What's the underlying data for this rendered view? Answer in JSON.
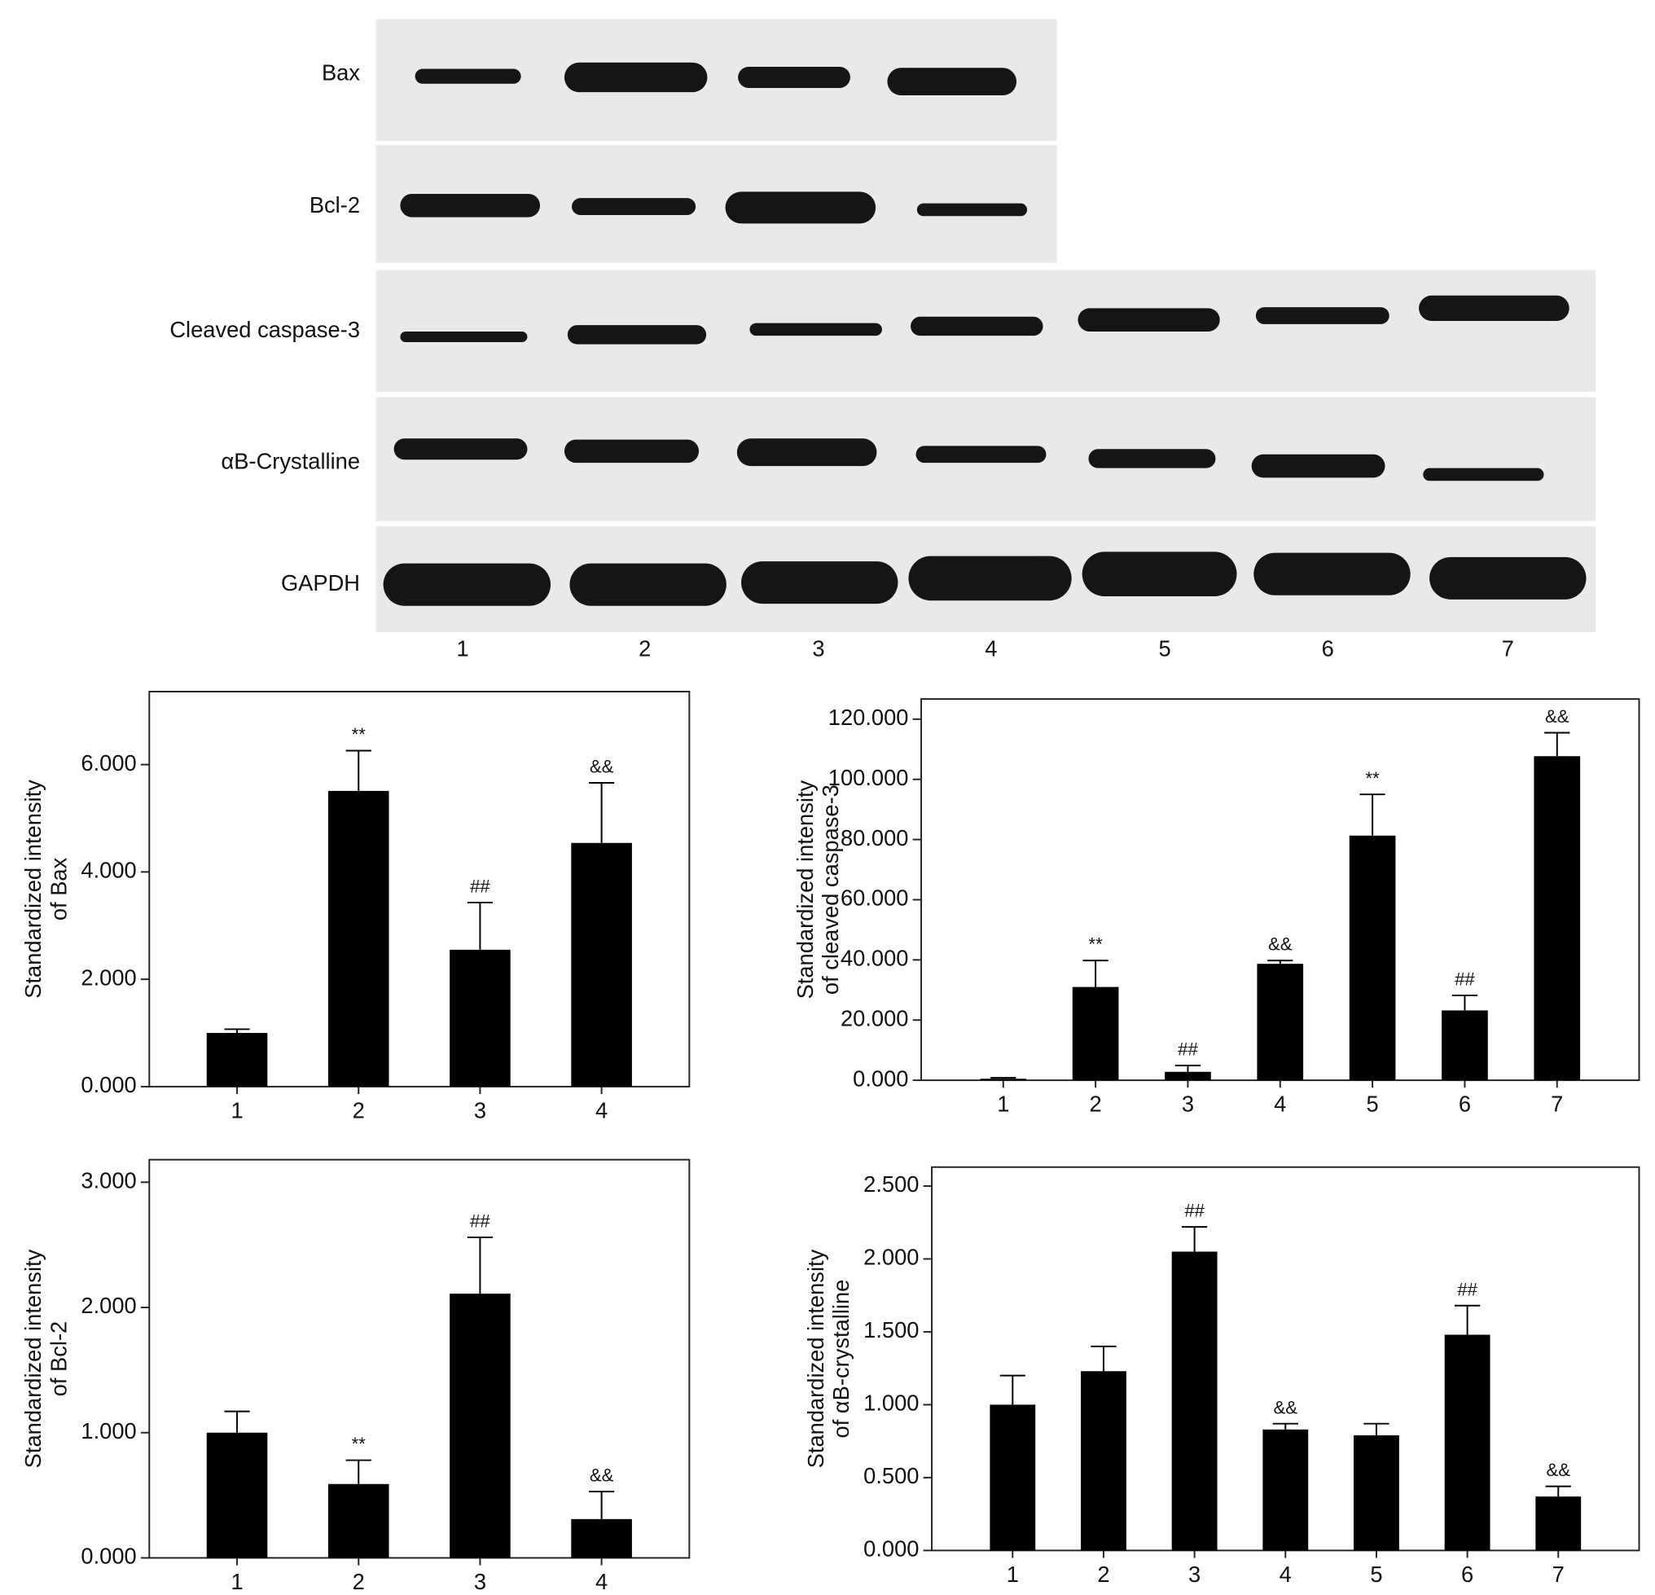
{
  "blot": {
    "rows": [
      "Bax",
      "Bcl-2",
      "Cleaved caspase-3",
      "αB-Crystalline",
      "GAPDH"
    ],
    "lanes": [
      "1",
      "2",
      "3",
      "4",
      "5",
      "6",
      "7"
    ]
  },
  "chart_data": [
    {
      "type": "bar",
      "y_label": [
        "Standardized intensity",
        "of Bax"
      ],
      "color": "#000000",
      "categories": [
        "1",
        "2",
        "3",
        "4"
      ],
      "values": [
        1.0,
        5.51,
        2.55,
        4.54
      ],
      "errors": [
        0.07,
        0.75,
        0.88,
        1.12
      ],
      "annotations": [
        null,
        "**",
        "##",
        "&&"
      ],
      "ylim": [
        0,
        7.36
      ],
      "yticks": [
        {
          "value": 0,
          "label": "0.000"
        },
        {
          "value": 2,
          "label": "2.000"
        },
        {
          "value": 4,
          "label": "4.000"
        },
        {
          "value": 6,
          "label": "6.000"
        }
      ]
    },
    {
      "type": "bar",
      "y_label": [
        "Standardized intensity",
        "of cleaved caspase-3"
      ],
      "color": "#000000",
      "categories": [
        "1",
        "2",
        "3",
        "4",
        "5",
        "6",
        "7"
      ],
      "values": [
        0.5,
        31,
        2.8,
        38.7,
        81.3,
        23.2,
        107.7
      ],
      "errors": [
        0.3,
        8.8,
        2.1,
        1.1,
        13.7,
        5,
        7.8
      ],
      "annotations": [
        null,
        "**",
        "##",
        "&&",
        "**",
        "##",
        "&&"
      ],
      "ylim": [
        0,
        126.7
      ],
      "yticks": [
        {
          "value": 0,
          "label": "0.000"
        },
        {
          "value": 20,
          "label": "20.000"
        },
        {
          "value": 40,
          "label": "40.000"
        },
        {
          "value": 60,
          "label": "60.000"
        },
        {
          "value": 80,
          "label": "80.000"
        },
        {
          "value": 100,
          "label": "100.000"
        },
        {
          "value": 120,
          "label": "120.000"
        }
      ]
    },
    {
      "type": "bar",
      "y_label": [
        "Standardized intensity",
        "of Bcl-2"
      ],
      "color": "#000000",
      "categories": [
        "1",
        "2",
        "3",
        "4"
      ],
      "values": [
        1.0,
        0.59,
        2.11,
        0.31
      ],
      "errors": [
        0.17,
        0.19,
        0.45,
        0.22
      ],
      "annotations": [
        null,
        "**",
        "##",
        "&&"
      ],
      "ylim": [
        0,
        3.18
      ],
      "yticks": [
        {
          "value": 0,
          "label": "0.000"
        },
        {
          "value": 1,
          "label": "1.000"
        },
        {
          "value": 2,
          "label": "2.000"
        },
        {
          "value": 3,
          "label": "3.000"
        }
      ]
    },
    {
      "type": "bar",
      "y_label": [
        "Standardized intensity",
        "of αB-crystalline"
      ],
      "color": "#000000",
      "categories": [
        "1",
        "2",
        "3",
        "4",
        "5",
        "6",
        "7"
      ],
      "values": [
        1.0,
        1.23,
        2.05,
        0.83,
        0.79,
        1.48,
        0.37
      ],
      "errors": [
        0.2,
        0.17,
        0.17,
        0.04,
        0.08,
        0.2,
        0.07
      ],
      "annotations": [
        null,
        null,
        "##",
        "&&",
        null,
        "##",
        "&&"
      ],
      "ylim": [
        0,
        2.63
      ],
      "yticks": [
        {
          "value": 0,
          "label": "0.000"
        },
        {
          "value": 0.5,
          "label": "0.500"
        },
        {
          "value": 1,
          "label": "1.000"
        },
        {
          "value": 1.5,
          "label": "1.500"
        },
        {
          "value": 2,
          "label": "2.000"
        },
        {
          "value": 2.5,
          "label": "2.500"
        }
      ]
    }
  ]
}
